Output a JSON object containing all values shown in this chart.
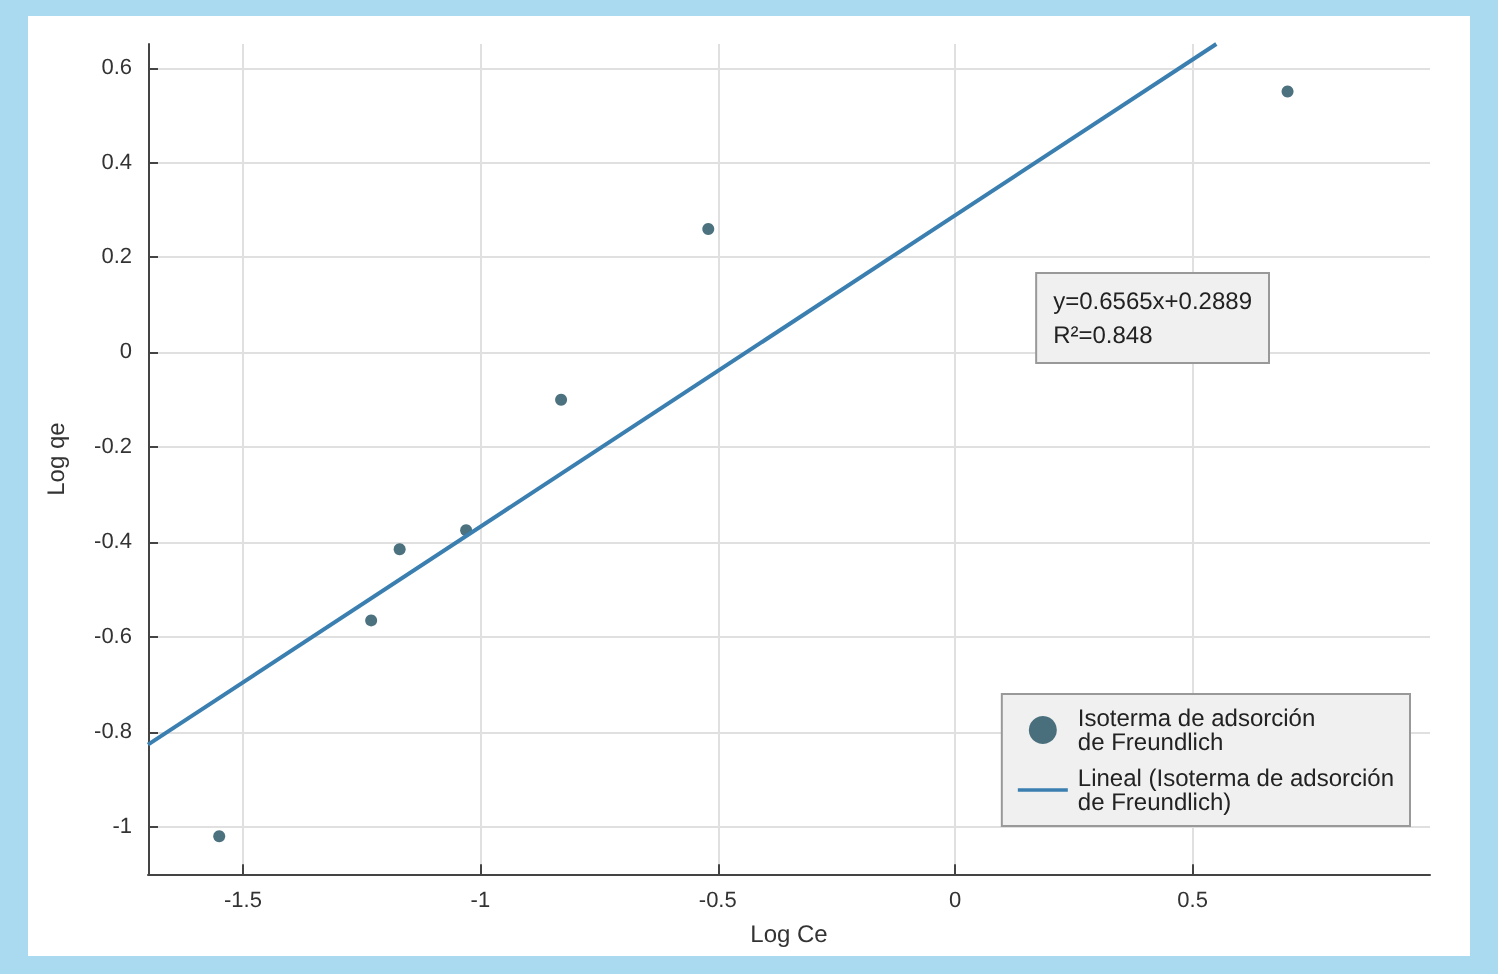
{
  "chart_data": {
    "type": "scatter",
    "xlabel": "Log Ce",
    "ylabel": "Log qe",
    "xlim": [
      -1.7,
      1.0
    ],
    "xticks": [
      -1.5,
      -1,
      -0.5,
      0,
      0.5
    ],
    "ylim": [
      -1.1,
      0.65
    ],
    "yticks": [
      -1,
      -0.8,
      -0.6,
      -0.4,
      -0.2,
      0,
      0.2,
      0.4,
      0.6
    ],
    "series": [
      {
        "name": "Isoterma de adsorción\nde Freundlich",
        "marker": "circle",
        "color": "#1f4e5f",
        "x": [
          -1.55,
          -1.23,
          -1.17,
          -1.03,
          -0.83,
          -0.52,
          0.7
        ],
        "values": [
          -1.02,
          -0.565,
          -0.415,
          -0.375,
          -0.1,
          0.26,
          0.55
        ]
      },
      {
        "name": "Lineal (Isoterma de adsorción\nde Freundlich)",
        "type": "line",
        "marker": "none",
        "color": "#3a7fb0",
        "x": [
          -1.7,
          0.55
        ],
        "values": [
          -0.827,
          0.65
        ]
      }
    ],
    "annotations": [
      "y=0.6565x+0.2889\nR²=0.848"
    ],
    "grid": true,
    "legend": "bottom right",
    "line_style": "solid"
  }
}
